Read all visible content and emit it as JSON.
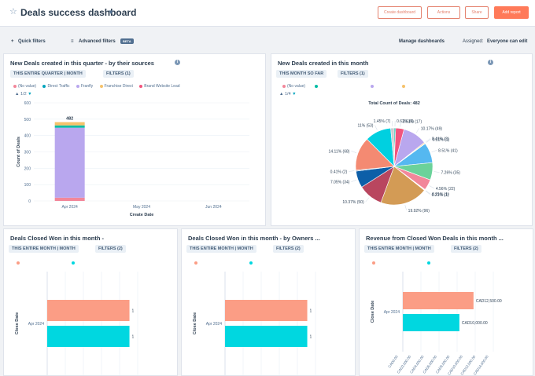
{
  "header": {
    "title": "Deals success dashboard",
    "buttons": [
      "Create dashboard",
      "Actions",
      "Share",
      "Add report"
    ]
  },
  "filterbar": {
    "quick_filters": "Quick filters",
    "advanced_filters": "Advanced filters",
    "beta": "BETA",
    "manage": "Manage dashboards",
    "assigned_label": "Assigned:",
    "assigned_value": "Everyone can edit"
  },
  "colors": {
    "accent": "#ff7a59",
    "teal": "#00bda5",
    "cyan": "#00d7e0",
    "salmon": "#fb9d85",
    "purple": "#b9a7ee",
    "link": "#0091ae"
  },
  "cards": {
    "c1": {
      "title": "New Deals created in this quarter - by their sources",
      "pill1": "THIS ENTIRE QUARTER | MONTH",
      "pill2": "FILTERS (1)",
      "legend": [
        "(No value)",
        "Direct Traffic",
        "Franfly",
        "Franchise Direct",
        "Brand Website Lead"
      ],
      "pager": "1/2"
    },
    "c2": {
      "title": "New Deals created in this month",
      "pill1": "THIS MONTH SO FAR",
      "pill2": "FILTERS (1)",
      "legend": [
        "(No value)"
      ],
      "pager": "1/4"
    },
    "c3": {
      "title": "Deals Closed Won in this month -",
      "pill1": "THIS ENTIRE MONTH | MONTH",
      "pill2": "FILTERS (2)"
    },
    "c4": {
      "title": "Deals Closed Won in this month - by Owners ...",
      "pill1": "THIS ENTIRE MONTH | MONTH",
      "pill2": "FILTERS (2)"
    },
    "c5": {
      "title": "Revenue from Closed Won Deals in this month ...",
      "pill1": "THIS ENTIRE MONTH | MONTH",
      "pill2": "FILTERS (2)"
    }
  },
  "chart_data": [
    {
      "type": "bar",
      "stacked": true,
      "categories": [
        "Apr 2024",
        "May 2024",
        "Jun 2024"
      ],
      "series": [
        {
          "name": "(No value)",
          "values": [
            20,
            0,
            0
          ],
          "color": "#f2879a"
        },
        {
          "name": "Franfly",
          "values": [
            428,
            0,
            0
          ],
          "color": "#b9a7ee"
        },
        {
          "name": "Direct Traffic",
          "values": [
            14,
            0,
            0
          ],
          "color": "#00bda5"
        },
        {
          "name": "Franchise Direct",
          "values": [
            20,
            0,
            0
          ],
          "color": "#f5c26b"
        }
      ],
      "total_label": "482",
      "ylabel": "Count of Deals",
      "xlabel": "Create Date",
      "ylim": [
        0,
        600
      ],
      "yticks": [
        0,
        100,
        200,
        300,
        400,
        500,
        600
      ],
      "grid": true
    },
    {
      "type": "pie",
      "title": "Total Count of Deals: 482",
      "slices": [
        {
          "label": "0.62% (3)",
          "value": 3,
          "color": "#00bda5"
        },
        {
          "label": "3.53% (17)",
          "value": 17,
          "color": "#f2547d"
        },
        {
          "label": "10.17% (49)",
          "value": 49,
          "color": "#b9a7ee"
        },
        {
          "label": "0.41% (2)",
          "value": 2,
          "color": "#f5c26b"
        },
        {
          "label": "0.21% (1)",
          "value": 1,
          "color": "#7fd1de"
        },
        {
          "label": "8.51% (41)",
          "value": 41,
          "color": "#55b8f0"
        },
        {
          "label": "7.26% (35)",
          "value": 35,
          "color": "#6bd29a"
        },
        {
          "label": "4.56% (22)",
          "value": 22,
          "color": "#f2879a"
        },
        {
          "label": "0.21% (1)",
          "value": 1,
          "color": "#516f90"
        },
        {
          "label": "0.21% (1)",
          "value": 1,
          "color": "#e0a07a"
        },
        {
          "label": "19.92% (96)",
          "value": 96,
          "color": "#d39b55"
        },
        {
          "label": "10.37% (50)",
          "value": 50,
          "color": "#b9465f"
        },
        {
          "label": "7.05% (34)",
          "value": 34,
          "color": "#0d5fa8"
        },
        {
          "label": "0.41% (2)",
          "value": 2,
          "color": "#7c98b6"
        },
        {
          "label": "14.11% (68)",
          "value": 68,
          "color": "#f48a72"
        },
        {
          "label": "11% (53)",
          "value": 53,
          "color": "#00d0e0"
        },
        {
          "label": "1.45% (7)",
          "value": 7,
          "color": "#c9ccd1"
        }
      ]
    },
    {
      "type": "bar",
      "orientation": "horizontal",
      "categories": [
        "Apr 2024"
      ],
      "series": [
        {
          "values": [
            1
          ],
          "color": "#fb9d85"
        },
        {
          "values": [
            1
          ],
          "color": "#00d7e0"
        }
      ],
      "value_labels": [
        "1",
        "1"
      ],
      "ylabel": "Close Date",
      "xlim": [
        0,
        1.1
      ]
    },
    {
      "type": "bar",
      "orientation": "horizontal",
      "categories": [
        "Apr 2024"
      ],
      "series": [
        {
          "values": [
            1
          ],
          "color": "#fb9d85"
        },
        {
          "values": [
            1
          ],
          "color": "#00d7e0"
        }
      ],
      "value_labels": [
        "1",
        "1"
      ],
      "ylabel": "Close Date",
      "xlim": [
        0,
        1.1
      ]
    },
    {
      "type": "bar",
      "orientation": "horizontal",
      "categories": [
        "Apr 2024"
      ],
      "series": [
        {
          "values": [
            12500
          ],
          "color": "#fb9d85"
        },
        {
          "values": [
            10000
          ],
          "color": "#00d7e0"
        }
      ],
      "value_labels": [
        "CAD12,500.00",
        "CAD10,000.00"
      ],
      "ylabel": "Close Date",
      "xlim": [
        0,
        16000
      ],
      "xticks": [
        "CAD0.00",
        "CAD2,000.00",
        "CAD4,000.00",
        "CAD6,000.00",
        "CAD8,000.00",
        "CAD10,000.00",
        "CAD12,000.00",
        "CAD14,000.00"
      ]
    }
  ]
}
